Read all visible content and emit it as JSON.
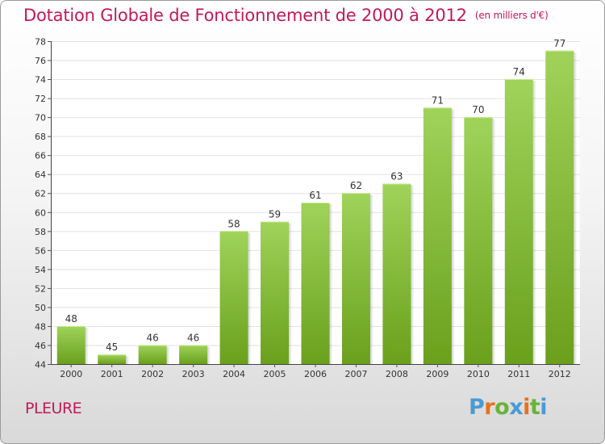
{
  "title": "Dotation Globale de Fonctionnement de 2000 à 2012",
  "unit_note": "(en milliers d'€)",
  "commune": "PLEURE",
  "logo": {
    "text": "Proxiti",
    "colors": [
      "#4a9ad6",
      "#e8711a",
      "#6ab23a",
      "#4a9ad6",
      "#e8711a",
      "#6ab23a",
      "#4a9ad6"
    ]
  },
  "colors": {
    "bar_top": "#9fd35a",
    "bar_bottom": "#6aa01c",
    "accent": "#c2185b"
  },
  "chart_data": {
    "type": "bar",
    "categories": [
      "2000",
      "2001",
      "2002",
      "2003",
      "2004",
      "2005",
      "2006",
      "2007",
      "2008",
      "2009",
      "2010",
      "2011",
      "2012"
    ],
    "values": [
      48,
      45,
      46,
      46,
      58,
      59,
      61,
      62,
      63,
      71,
      70,
      74,
      77
    ],
    "title": "Dotation Globale de Fonctionnement de 2000 à 2012",
    "xlabel": "",
    "ylabel": "",
    "ylim": [
      44,
      78
    ],
    "yticks": [
      44,
      46,
      48,
      50,
      52,
      54,
      56,
      58,
      60,
      62,
      64,
      66,
      68,
      70,
      72,
      74,
      76,
      78
    ],
    "grid": true,
    "legend": "none"
  }
}
